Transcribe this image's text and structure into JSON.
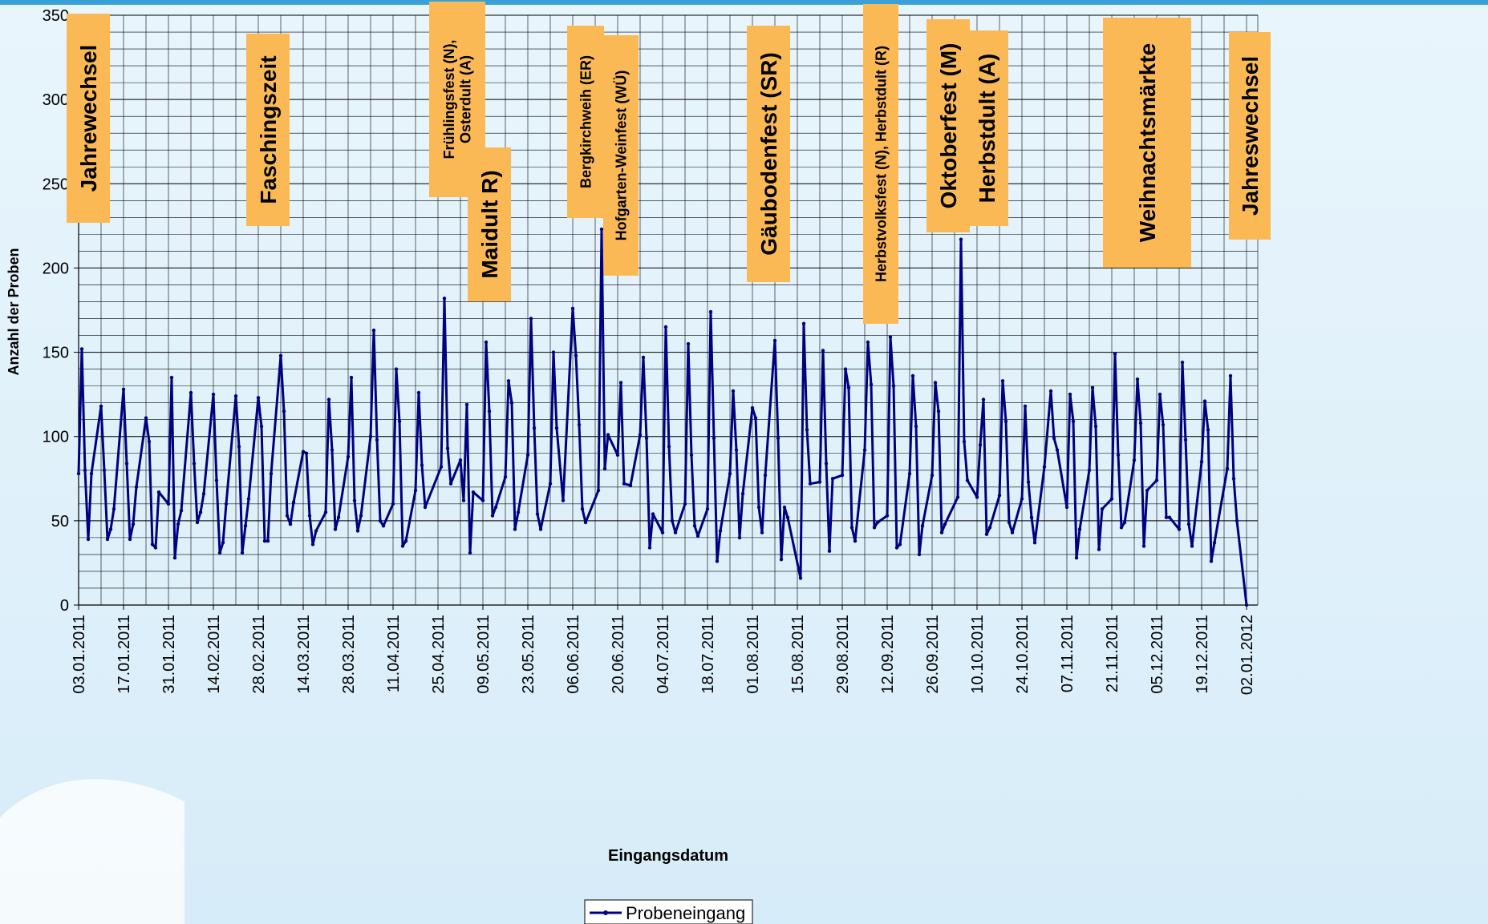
{
  "chart_data": {
    "type": "line",
    "xlabel": "Eingangsdatum",
    "ylabel": "Anzahl der Proben",
    "ylim": [
      0,
      350
    ],
    "yticks": [
      0,
      50,
      100,
      150,
      200,
      250,
      300,
      350
    ],
    "xlim": [
      "03.01.2011",
      "02.01.2012"
    ],
    "xticks": [
      "03.01.2011",
      "17.01.2011",
      "31.01.2011",
      "14.02.2011",
      "28.02.2011",
      "14.03.2011",
      "28.03.2011",
      "11.04.2011",
      "25.04.2011",
      "09.05.2011",
      "23.05.2011",
      "06.06.2011",
      "20.06.2011",
      "04.07.2011",
      "18.07.2011",
      "01.08.2011",
      "15.08.2011",
      "29.08.2011",
      "12.09.2011",
      "26.09.2011",
      "10.10.2011",
      "24.10.2011",
      "07.11.2011",
      "21.11.2011",
      "05.12.2011",
      "19.12.2011",
      "02.01.2012"
    ],
    "grid": true,
    "legend_position": "bottom",
    "line_color": "#000080",
    "annotation_color": "#fbb955",
    "series": [
      {
        "name": "Probeneingang",
        "x": [
          "03.01.2011",
          "04.01.2011",
          "05.01.2011",
          "06.01.2011",
          "07.01.2011",
          "10.01.2011",
          "11.01.2011",
          "12.01.2011",
          "13.01.2011",
          "14.01.2011",
          "17.01.2011",
          "18.01.2011",
          "19.01.2011",
          "20.01.2011",
          "21.01.2011",
          "24.01.2011",
          "25.01.2011",
          "26.01.2011",
          "27.01.2011",
          "28.01.2011",
          "31.01.2011",
          "01.02.2011",
          "02.02.2011",
          "03.02.2011",
          "04.02.2011",
          "07.02.2011",
          "08.02.2011",
          "09.02.2011",
          "10.02.2011",
          "11.02.2011",
          "14.02.2011",
          "15.02.2011",
          "16.02.2011",
          "17.02.2011",
          "18.02.2011",
          "21.02.2011",
          "22.02.2011",
          "23.02.2011",
          "24.02.2011",
          "25.02.2011",
          "28.02.2011",
          "01.03.2011",
          "02.03.2011",
          "03.03.2011",
          "04.03.2011",
          "07.03.2011",
          "08.03.2011",
          "09.03.2011",
          "10.03.2011",
          "11.03.2011",
          "14.03.2011",
          "15.03.2011",
          "16.03.2011",
          "17.03.2011",
          "18.03.2011",
          "21.03.2011",
          "22.03.2011",
          "23.03.2011",
          "24.03.2011",
          "25.03.2011",
          "28.03.2011",
          "29.03.2011",
          "30.03.2011",
          "31.03.2011",
          "01.04.2011",
          "04.04.2011",
          "05.04.2011",
          "06.04.2011",
          "07.04.2011",
          "08.04.2011",
          "11.04.2011",
          "12.04.2011",
          "13.04.2011",
          "14.04.2011",
          "15.04.2011",
          "18.04.2011",
          "19.04.2011",
          "20.04.2011",
          "21.04.2011",
          "26.04.2011",
          "27.04.2011",
          "28.04.2011",
          "29.04.2011",
          "02.05.2011",
          "03.05.2011",
          "04.05.2011",
          "05.05.2011",
          "06.05.2011",
          "09.05.2011",
          "10.05.2011",
          "11.05.2011",
          "12.05.2011",
          "13.05.2011",
          "16.05.2011",
          "17.05.2011",
          "18.05.2011",
          "19.05.2011",
          "20.05.2011",
          "23.05.2011",
          "24.05.2011",
          "25.05.2011",
          "26.05.2011",
          "27.05.2011",
          "30.05.2011",
          "31.05.2011",
          "01.06.2011",
          "03.06.2011",
          "06.06.2011",
          "07.06.2011",
          "08.06.2011",
          "09.06.2011",
          "10.06.2011",
          "14.06.2011",
          "15.06.2011",
          "16.06.2011",
          "17.06.2011",
          "20.06.2011",
          "21.06.2011",
          "22.06.2011",
          "24.06.2011",
          "27.06.2011",
          "28.06.2011",
          "29.06.2011",
          "30.06.2011",
          "01.07.2011",
          "04.07.2011",
          "05.07.2011",
          "06.07.2011",
          "07.07.2011",
          "08.07.2011",
          "11.07.2011",
          "12.07.2011",
          "13.07.2011",
          "14.07.2011",
          "15.07.2011",
          "18.07.2011",
          "19.07.2011",
          "20.07.2011",
          "21.07.2011",
          "22.07.2011",
          "25.07.2011",
          "26.07.2011",
          "27.07.2011",
          "28.07.2011",
          "29.07.2011",
          "01.08.2011",
          "02.08.2011",
          "03.08.2011",
          "04.08.2011",
          "05.08.2011",
          "08.08.2011",
          "09.08.2011",
          "10.08.2011",
          "11.08.2011",
          "12.08.2011",
          "16.08.2011",
          "17.08.2011",
          "18.08.2011",
          "19.08.2011",
          "22.08.2011",
          "23.08.2011",
          "24.08.2011",
          "25.08.2011",
          "26.08.2011",
          "29.08.2011",
          "30.08.2011",
          "31.08.2011",
          "01.09.2011",
          "02.09.2011",
          "05.09.2011",
          "06.09.2011",
          "07.09.2011",
          "08.09.2011",
          "09.09.2011",
          "12.09.2011",
          "13.09.2011",
          "14.09.2011",
          "15.09.2011",
          "16.09.2011",
          "19.09.2011",
          "20.09.2011",
          "21.09.2011",
          "22.09.2011",
          "23.09.2011",
          "26.09.2011",
          "27.09.2011",
          "28.09.2011",
          "29.09.2011",
          "30.09.2011",
          "04.10.2011",
          "05.10.2011",
          "06.10.2011",
          "07.10.2011",
          "10.10.2011",
          "11.10.2011",
          "12.10.2011",
          "13.10.2011",
          "14.10.2011",
          "17.10.2011",
          "18.10.2011",
          "19.10.2011",
          "20.10.2011",
          "21.10.2011",
          "24.10.2011",
          "25.10.2011",
          "26.10.2011",
          "27.10.2011",
          "28.10.2011",
          "31.10.2011",
          "02.11.2011",
          "03.11.2011",
          "04.11.2011",
          "07.11.2011",
          "08.11.2011",
          "09.11.2011",
          "10.11.2011",
          "11.11.2011",
          "14.11.2011",
          "15.11.2011",
          "16.11.2011",
          "17.11.2011",
          "18.11.2011",
          "21.11.2011",
          "22.11.2011",
          "23.11.2011",
          "24.11.2011",
          "25.11.2011",
          "28.11.2011",
          "29.11.2011",
          "30.11.2011",
          "01.12.2011",
          "02.12.2011",
          "05.12.2011",
          "06.12.2011",
          "07.12.2011",
          "08.12.2011",
          "09.12.2011",
          "12.12.2011",
          "13.12.2011",
          "14.12.2011",
          "15.12.2011",
          "16.12.2011",
          "19.12.2011",
          "20.12.2011",
          "21.12.2011",
          "22.12.2011",
          "23.12.2011",
          "27.12.2011",
          "28.12.2011",
          "29.12.2011",
          "30.12.2011",
          "02.01.2012"
        ],
        "values": [
          78,
          152,
          80,
          39,
          78,
          118,
          80,
          39,
          45,
          57,
          128,
          84,
          39,
          48,
          70,
          111,
          97,
          36,
          34,
          67,
          60,
          135,
          28,
          48,
          56,
          126,
          84,
          49,
          55,
          66,
          125,
          74,
          31,
          37,
          60,
          124,
          94,
          31,
          47,
          63,
          123,
          106,
          38,
          38,
          78,
          148,
          115,
          53,
          48,
          61,
          91,
          90,
          53,
          36,
          44,
          55,
          122,
          92,
          45,
          52,
          88,
          135,
          62,
          44,
          53,
          100,
          163,
          98,
          50,
          47,
          60,
          140,
          109,
          35,
          38,
          68,
          126,
          83,
          58,
          82,
          182,
          93,
          72,
          86,
          62,
          119,
          31,
          67,
          62,
          156,
          115,
          53,
          58,
          76,
          133,
          120,
          45,
          55,
          89,
          170,
          105,
          54,
          45,
          72,
          150,
          105,
          62,
          176,
          148,
          107,
          57,
          49,
          68,
          223,
          81,
          101,
          89,
          132,
          72,
          71,
          101,
          147,
          99,
          34,
          54,
          43,
          165,
          94,
          50,
          43,
          60,
          155,
          89,
          47,
          41,
          57,
          174,
          99,
          26,
          44,
          78,
          127,
          92,
          40,
          66,
          117,
          111,
          58,
          43,
          77,
          157,
          99,
          27,
          58,
          52,
          16,
          167,
          104,
          72,
          73,
          151,
          84,
          32,
          75,
          77,
          140,
          129,
          46,
          38,
          92,
          156,
          131,
          46,
          49,
          53,
          159,
          130,
          34,
          36,
          78,
          136,
          106,
          30,
          47,
          77,
          132,
          115,
          43,
          48,
          64,
          217,
          97,
          74,
          64,
          95,
          122,
          42,
          46,
          65,
          133,
          109,
          49,
          43,
          63,
          118,
          73,
          52,
          37,
          82,
          127,
          99,
          92,
          58,
          125,
          109,
          28,
          45,
          80,
          129,
          106,
          33,
          57,
          63,
          149,
          89,
          46,
          49,
          86,
          134,
          108,
          35,
          68,
          74,
          125,
          107,
          52,
          52,
          45,
          144,
          98,
          48,
          35,
          85,
          121,
          104,
          26,
          37,
          81,
          136,
          75,
          50,
          0
        ]
      }
    ],
    "annotations": [
      {
        "label": "Jahrewechsel",
        "x": "06.01.2011"
      },
      {
        "label": "Faschingszeit",
        "x": "03.03.2011"
      },
      {
        "label": "Frühlingsfest (N),\nOsterdult (A)",
        "x": "01.05.2011"
      },
      {
        "label": "Maidult R)",
        "x": "11.05.2011"
      },
      {
        "label": "Bergkirchweih (ER)",
        "x": "10.06.2011"
      },
      {
        "label": "Hofgarten-Weinfest (WÜ)",
        "x": "21.06.2011"
      },
      {
        "label": "Gäubodenfest (SR)",
        "x": "06.08.2011"
      },
      {
        "label": "Herbstvolksfest (N), Herbstdult (R)",
        "x": "10.09.2011"
      },
      {
        "label": "Oktoberfest (M)",
        "x": "01.10.2011"
      },
      {
        "label": "Herbstdult (A)",
        "x": "13.10.2011"
      },
      {
        "label": "Weihnachtsmärkte",
        "x": "02.12.2011"
      },
      {
        "label": "Jahreswechsel",
        "x": "03.01.2012"
      }
    ]
  },
  "legend": {
    "label": "Probeneingang"
  }
}
